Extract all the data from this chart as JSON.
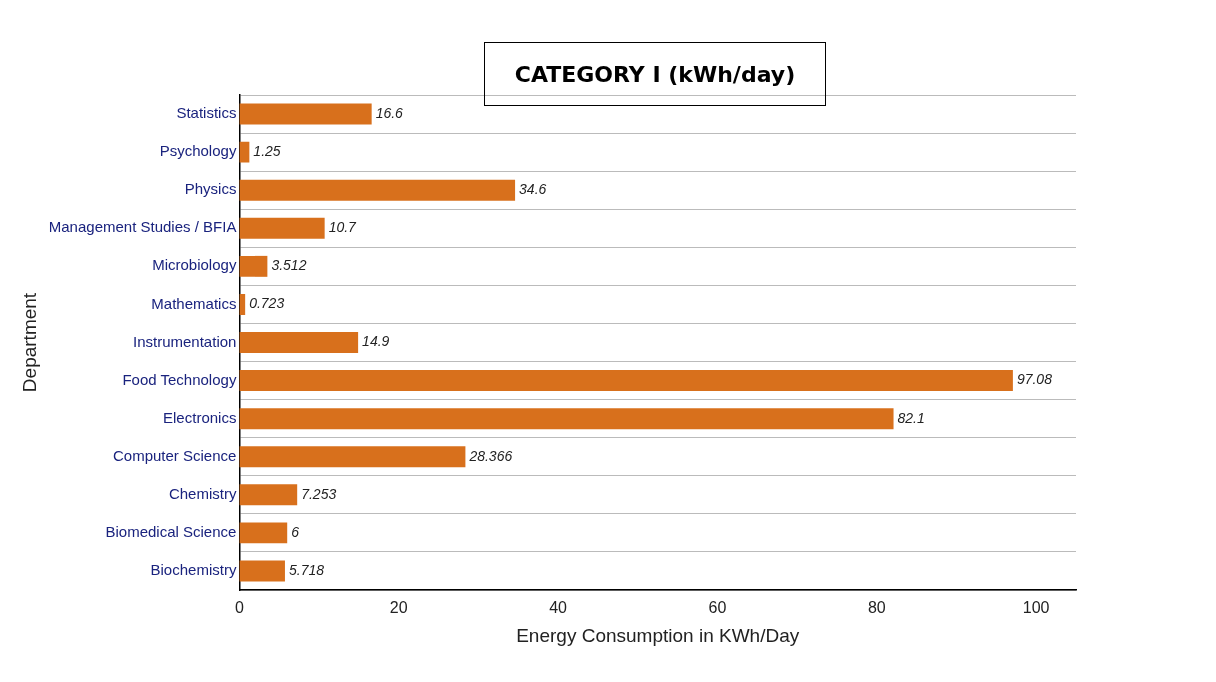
{
  "chart_data": {
    "type": "bar",
    "orientation": "horizontal",
    "title": "CATEGORY I (kWh/day)",
    "xlabel": "Energy Consumption in KWh/Day",
    "ylabel": "Department",
    "categories": [
      "Statistics",
      "Psychology",
      "Physics",
      "Management Studies / BFIA",
      "Microbiology",
      "Mathematics",
      "Instrumentation",
      "Food Technology",
      "Electronics",
      "Computer Science",
      "Chemistry",
      "Biomedical Science",
      "Biochemistry"
    ],
    "values": [
      16.6,
      1.25,
      34.6,
      10.7,
      3.512,
      0.723,
      14.9,
      97.08,
      82.1,
      28.366,
      7.253,
      6,
      5.718
    ],
    "color": "#d8701c",
    "xlim": [
      0,
      105
    ],
    "xticks": [
      0,
      20,
      40,
      60,
      80,
      100
    ],
    "grid": "y",
    "data_labels": true,
    "legend": false
  }
}
